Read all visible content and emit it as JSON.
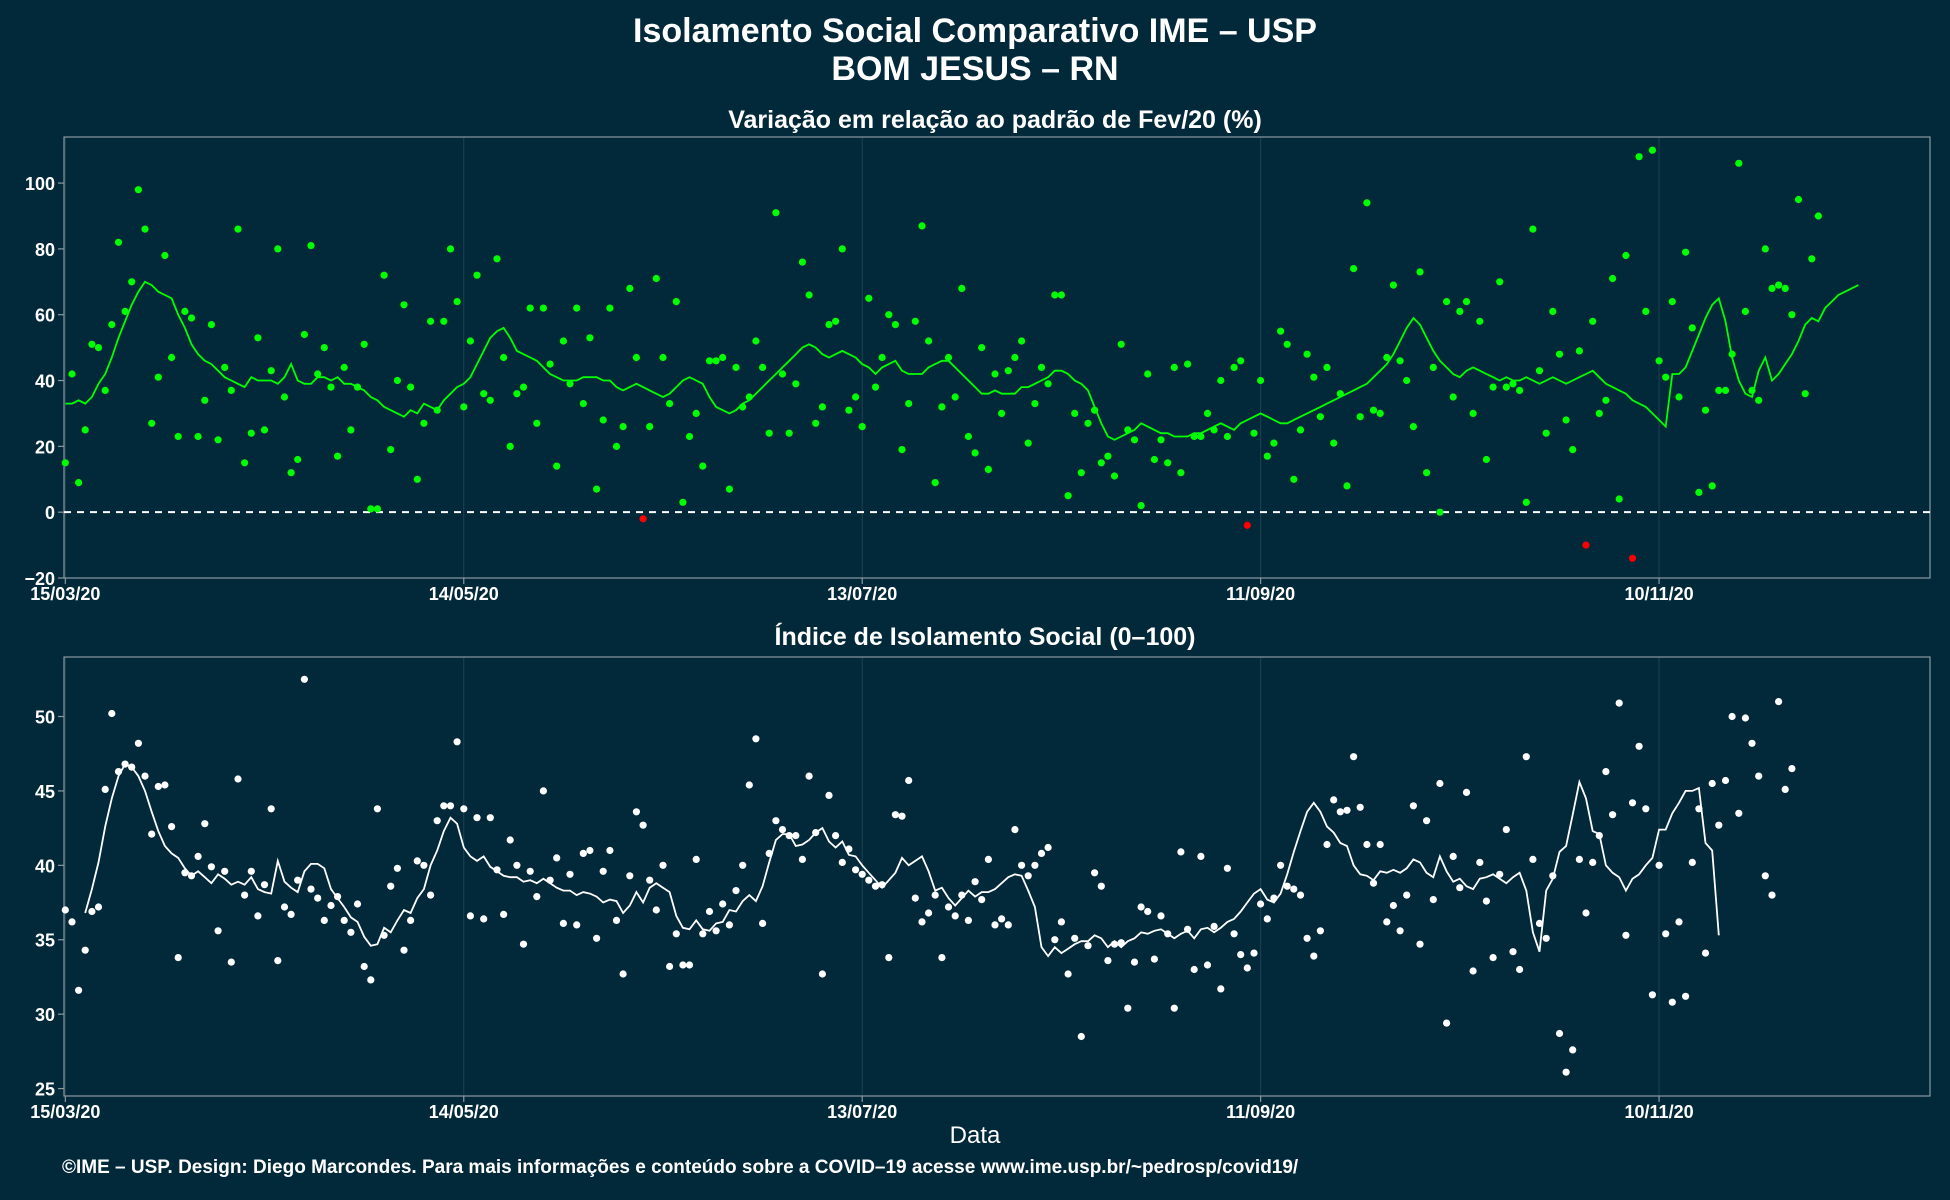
{
  "header": {
    "title": "Isolamento Social Comparativo IME – USP",
    "subtitle": "BOM JESUS – RN"
  },
  "footer": {
    "credit": "©IME – USP. Design: Diego Marcondes. Para mais informações e conteúdo sobre a COVID–19 acesse www.ime.usp.br/~pedrosp/covid19/"
  },
  "colors": {
    "background": "#02293a",
    "panel_border": "#8a99a0",
    "grid": "#1e4252",
    "positive": "#00ff00",
    "negative": "#ff0000",
    "white": "#ffffff"
  },
  "chart_data": [
    {
      "type": "scatter",
      "title": "Variação em relação ao padrão de Fev/20 (%)",
      "xlabel": "",
      "ylabel": "",
      "x_start": "15/03/20",
      "x_tick_labels": [
        "15/03/20",
        "14/05/20",
        "13/07/20",
        "11/09/20",
        "10/11/20"
      ],
      "y_ticks": [
        -20,
        0,
        20,
        40,
        60,
        80,
        100
      ],
      "ylim": [
        -20,
        114
      ],
      "reference_line": 0,
      "grid": true,
      "series": [
        {
          "kind": "points",
          "values": [
            15,
            42,
            9,
            25,
            51,
            50,
            37,
            57,
            82,
            61,
            70,
            98,
            86,
            27,
            41,
            78,
            47,
            23,
            61,
            59,
            23,
            34,
            57,
            22,
            44,
            37,
            86,
            15,
            24,
            53,
            25,
            43,
            80,
            35,
            12,
            16,
            54,
            81,
            42,
            50,
            38,
            17,
            44,
            25,
            38,
            51,
            1,
            1,
            72,
            19,
            40,
            63,
            38,
            10,
            27,
            58,
            31,
            58,
            80,
            64,
            32,
            52,
            72,
            36,
            34,
            77,
            47,
            20,
            36,
            38,
            62,
            27,
            62,
            45,
            14,
            52,
            39,
            62,
            33,
            53,
            7,
            28,
            62,
            20,
            26,
            68,
            47,
            -2,
            26,
            71,
            47,
            33,
            64,
            3,
            23,
            30,
            14,
            46,
            46,
            47,
            7,
            44,
            32,
            35,
            52,
            44,
            24,
            91,
            42,
            24,
            39,
            76,
            66,
            27,
            32,
            57,
            58,
            80,
            31,
            35,
            26,
            65,
            38,
            47,
            60,
            57,
            19,
            33,
            58,
            87,
            52,
            9,
            32,
            47,
            35,
            68,
            23,
            18,
            50,
            13,
            42,
            30,
            43,
            47,
            52,
            21,
            33,
            44,
            39,
            66,
            66,
            5,
            30,
            12,
            27,
            31,
            15,
            17,
            11,
            51,
            25,
            22,
            2,
            42,
            16,
            22,
            15,
            44,
            12,
            45,
            23,
            23,
            30,
            25,
            40,
            23,
            44,
            46,
            -4,
            24,
            40,
            17,
            21,
            55,
            51,
            10,
            25,
            48,
            41,
            29,
            44,
            21,
            36,
            8,
            74,
            29,
            94,
            31,
            30,
            47,
            69,
            46,
            40,
            26,
            73,
            12,
            44,
            0,
            64,
            35,
            61,
            64,
            30,
            58,
            16,
            38,
            70,
            38,
            39,
            37,
            3,
            86,
            43,
            24,
            61,
            48,
            28,
            19,
            49,
            -10,
            58,
            30,
            34,
            71,
            4,
            78,
            -14,
            108,
            61,
            110,
            46,
            41,
            64,
            35,
            79,
            56,
            6,
            31,
            8,
            37,
            37,
            48,
            106,
            61,
            37,
            34,
            80,
            68,
            69,
            68,
            60,
            95,
            36,
            77,
            90
          ],
          "color_rule": "green if >= 0, red if < 0"
        },
        {
          "kind": "line",
          "name": "",
          "values": [
            33,
            33,
            34,
            33,
            35,
            39,
            42,
            47,
            53,
            58,
            63,
            67,
            70,
            69,
            67,
            66,
            65,
            60,
            56,
            51,
            48,
            46,
            45,
            43,
            41,
            40,
            39,
            38,
            41,
            40,
            40,
            40,
            39,
            41,
            45,
            40,
            39,
            39,
            41,
            41,
            40,
            41,
            39,
            39,
            38,
            37,
            35,
            34,
            32,
            31,
            30,
            29,
            31,
            30,
            33,
            32,
            31,
            34,
            36,
            38,
            39,
            41,
            45,
            49,
            53,
            55,
            56,
            53,
            49,
            48,
            47,
            46,
            44,
            42,
            41,
            40,
            40,
            40,
            41,
            41,
            41,
            40,
            40,
            38,
            37,
            38,
            39,
            38,
            37,
            36,
            35,
            36,
            38,
            40,
            41,
            40,
            39,
            35,
            32,
            31,
            30,
            31,
            33,
            34,
            36,
            38,
            40,
            42,
            44,
            46,
            48,
            50,
            51,
            50,
            48,
            47,
            48,
            49,
            48,
            47,
            45,
            44,
            42,
            44,
            45,
            46,
            43,
            42,
            42,
            42,
            44,
            45,
            46,
            46,
            44,
            42,
            40,
            38,
            36,
            36,
            37,
            36,
            36,
            36,
            38,
            38,
            39,
            40,
            41,
            43,
            43,
            42,
            40,
            39,
            37,
            32,
            27,
            23,
            22,
            23,
            24,
            25,
            27,
            26,
            25,
            24,
            24,
            23,
            23,
            23,
            24,
            24,
            25,
            26,
            27,
            26,
            25,
            27,
            28,
            29,
            30,
            29,
            28,
            27,
            27,
            28,
            29,
            30,
            31,
            32,
            33,
            34,
            35,
            36,
            37,
            38,
            39,
            41,
            43,
            45,
            48,
            52,
            56,
            59,
            57,
            53,
            49,
            46,
            44,
            42,
            41,
            43,
            44,
            43,
            42,
            41,
            40,
            41,
            40,
            40,
            41,
            40,
            39,
            40,
            41,
            40,
            39,
            40,
            41,
            42,
            43,
            41,
            39,
            38,
            37,
            36,
            34,
            33,
            32,
            30,
            28,
            26,
            42,
            42,
            44,
            49,
            54,
            59,
            63,
            65,
            58,
            47,
            40,
            36,
            35,
            43,
            47,
            40,
            42,
            45,
            48,
            52,
            57,
            59,
            58,
            62,
            64,
            66,
            67,
            68,
            69
          ],
          "color": "green",
          "description": "7-day moving average"
        }
      ]
    },
    {
      "type": "scatter",
      "title": "Índice de Isolamento Social (0–100)",
      "xlabel": "Data",
      "ylabel": "",
      "x_start": "15/03/20",
      "x_tick_labels": [
        "15/03/20",
        "14/05/20",
        "13/07/20",
        "11/09/20",
        "10/11/20"
      ],
      "y_ticks": [
        25,
        30,
        35,
        40,
        45,
        50
      ],
      "ylim": [
        24.5,
        54
      ],
      "grid": true,
      "series": [
        {
          "kind": "points",
          "values": [
            37,
            36.2,
            31.6,
            34.3,
            36.9,
            37.2,
            45.1,
            50.2,
            46.3,
            46.8,
            46.6,
            48.2,
            46,
            42.1,
            45.3,
            45.4,
            42.6,
            33.8,
            39.5,
            39.3,
            40.6,
            42.8,
            39.9,
            35.6,
            39.6,
            33.5,
            45.8,
            38,
            39.6,
            36.6,
            38.7,
            43.8,
            33.6,
            37.2,
            36.7,
            39,
            52.5,
            38.4,
            37.8,
            36.3,
            37.3,
            37.9,
            36.3,
            35.5,
            37.4,
            33.2,
            32.3,
            43.8,
            35.3,
            38.6,
            39.8,
            34.3,
            36.3,
            40.3,
            40,
            38,
            43,
            44,
            44,
            48.3,
            43.8,
            36.6,
            43.2,
            36.4,
            43.2,
            39.7,
            36.7,
            41.7,
            40,
            34.7,
            39.6,
            37.9,
            45,
            39,
            40.5,
            36.1,
            39.4,
            36,
            40.8,
            41,
            35.1,
            39.6,
            41,
            36.3,
            32.7,
            39.3,
            43.6,
            42.7,
            39,
            37,
            40,
            33.2,
            35.4,
            33.3,
            33.3,
            40.4,
            35.4,
            36.9,
            35.6,
            37.4,
            36,
            38.3,
            40,
            45.4,
            48.5,
            36.1,
            40.8,
            43,
            42.4,
            42,
            42,
            40.4,
            46,
            42.2,
            32.7,
            44.7,
            42,
            40.2,
            41.1,
            39.7,
            39.4,
            39,
            38.6,
            38.7,
            33.8,
            43.4,
            43.3,
            45.7,
            37.8,
            36.2,
            36.8,
            38,
            33.8,
            37.2,
            36.6,
            38,
            36.3,
            38.9,
            37.7,
            40.4,
            36,
            36.4,
            36,
            42.4,
            40,
            39.3,
            40,
            40.8,
            41.2,
            35,
            36.2,
            32.7,
            35.1,
            28.5,
            34.6,
            39.5,
            38.6,
            33.6,
            34.7,
            34.8,
            30.4,
            33.5,
            37.2,
            36.9,
            33.7,
            36.6,
            35.4,
            30.4,
            40.9,
            35.7,
            33,
            40.6,
            33.3,
            35.9,
            31.7,
            39.8,
            35.4,
            34,
            33.1,
            34.1,
            37.4,
            36.4,
            37.8,
            40,
            38.6,
            38.4,
            38,
            35.1,
            33.9,
            35.6,
            41.4,
            44.4,
            43.6,
            43.7,
            47.3,
            43.9,
            41.4,
            38.8,
            41.4,
            36.2,
            37.3,
            35.6,
            38,
            44,
            34.7,
            43,
            37.7,
            45.5,
            29.4,
            40.6,
            38.5,
            44.9,
            32.9,
            40.2,
            37.6,
            33.8,
            39.4,
            42.4,
            34.2,
            33,
            47.3,
            40.4,
            36.1,
            35.1,
            39.3,
            28.7,
            26.1,
            27.6,
            40.4,
            36.8,
            40.2,
            42,
            46.3,
            43.4,
            50.9,
            35.3,
            44.2,
            48,
            43.8,
            31.3,
            40,
            35.4,
            30.8,
            36.2,
            31.2,
            40.2,
            43.8,
            34.1,
            45.5,
            42.7,
            45.7,
            50,
            43.5,
            49.9,
            48.2,
            46,
            39.3,
            38,
            51,
            45.1,
            46.5
          ],
          "color": "white"
        },
        {
          "kind": "line",
          "name": "",
          "values": [
            36.8,
            38.4,
            40.2,
            42.6,
            44.5,
            46,
            46.8,
            46.6,
            46,
            45,
            43.6,
            42.3,
            41.3,
            40.8,
            40.5,
            39.8,
            39.3,
            39.6,
            39.2,
            38.8,
            39.4,
            39.1,
            38.7,
            38.9,
            38.7,
            39.2,
            38.4,
            38.2,
            38.1,
            40.3,
            38.9,
            38.5,
            38.2,
            39.6,
            40.1,
            40.1,
            39.8,
            38.4,
            37.8,
            37.2,
            36.5,
            36.2,
            35.2,
            34.6,
            34.7,
            35.8,
            35.5,
            36.3,
            37,
            36.8,
            37.8,
            38.4,
            40,
            41,
            42.3,
            43.2,
            42.8,
            41.2,
            40.6,
            40.3,
            40.6,
            39.9,
            39.6,
            39.3,
            39.2,
            39.2,
            38.9,
            39,
            38.8,
            39.1,
            38.8,
            38.5,
            38.3,
            38.3,
            38,
            38.2,
            38.1,
            37.9,
            37.5,
            37.7,
            37.6,
            36.8,
            37.3,
            38.2,
            37.5,
            38.5,
            38.8,
            38.5,
            38.2,
            36.6,
            35.8,
            35.7,
            36.3,
            35.7,
            35.6,
            36.1,
            36.2,
            37,
            36.9,
            37.6,
            38,
            37.6,
            38.6,
            40.2,
            41.7,
            42.1,
            42.1,
            41.3,
            41.4,
            41.7,
            42.2,
            42.5,
            41.6,
            41.2,
            41.6,
            40.7,
            40.6,
            40,
            39.5,
            39,
            38.5,
            39,
            39.5,
            40.5,
            40,
            40.3,
            40.6,
            39.6,
            38.3,
            38.5,
            37.8,
            37.3,
            37.8,
            38.3,
            37.9,
            38.2,
            38.2,
            38.4,
            38.8,
            39.2,
            39.4,
            39.3,
            38.3,
            37.2,
            34.5,
            33.9,
            34.5,
            34.1,
            34.4,
            34.7,
            34.9,
            34.9,
            35.3,
            35.1,
            34.5,
            34.9,
            34.5,
            34.9,
            35.1,
            35.5,
            35.4,
            35.6,
            35.7,
            35.4,
            35.1,
            35.4,
            35.6,
            35.1,
            35.7,
            35.8,
            35.5,
            35.8,
            36.2,
            36.4,
            36.9,
            37.5,
            38.1,
            38.4,
            37.7,
            37.5,
            38.1,
            39.4,
            40.9,
            42.3,
            43.6,
            44.2,
            43.6,
            42.6,
            42.2,
            41.5,
            41.3,
            40,
            39.4,
            39.3,
            39,
            39.6,
            39.5,
            39.7,
            39.5,
            39.8,
            40.4,
            40.2,
            39.5,
            39.2,
            40.6,
            39.6,
            38.9,
            39.1,
            38.6,
            38.4,
            39.1,
            39.2,
            39.4,
            39.1,
            38.8,
            39.2,
            39.5,
            38.3,
            35.5,
            34.2,
            38.3,
            39.1,
            40.9,
            41.3,
            43.4,
            45.6,
            44.5,
            42.3,
            42.1,
            40,
            39.5,
            39.2,
            38.3,
            39.1,
            39.4,
            40,
            40.5,
            42.4,
            42.4,
            43.5,
            44.2,
            45,
            45,
            45.2,
            41.5,
            41,
            35.3
          ],
          "color": "white",
          "description": "7-day moving average"
        }
      ]
    }
  ]
}
